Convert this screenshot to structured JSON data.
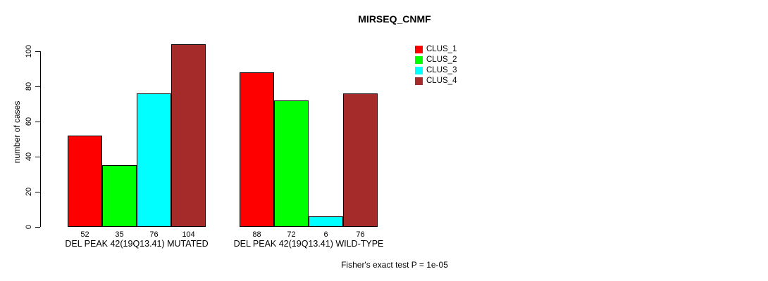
{
  "chart_data": {
    "type": "bar",
    "title": "MIRSEQ_CNMF",
    "ylabel": "number of cases",
    "ylim": [
      0,
      100
    ],
    "yticks": [
      0,
      20,
      40,
      60,
      80,
      100
    ],
    "categories": [
      "DEL PEAK 42(19Q13.41) MUTATED",
      "DEL PEAK 42(19Q13.41) WILD-TYPE"
    ],
    "series": [
      {
        "name": "CLUS_1",
        "color": "#FF0000",
        "values": [
          52,
          88
        ]
      },
      {
        "name": "CLUS_2",
        "color": "#00FF00",
        "values": [
          35,
          72
        ]
      },
      {
        "name": "CLUS_3",
        "color": "#00FFFF",
        "values": [
          76,
          6
        ]
      },
      {
        "name": "CLUS_4",
        "color": "#A52A2A",
        "values": [
          104,
          76
        ]
      }
    ],
    "bar_value_labels": true,
    "legend_position": "top-right",
    "grid": false,
    "axis_color": "#000000",
    "bar_border_color": "#000000",
    "footnote": "Fisher's exact test P = 1e-05"
  }
}
